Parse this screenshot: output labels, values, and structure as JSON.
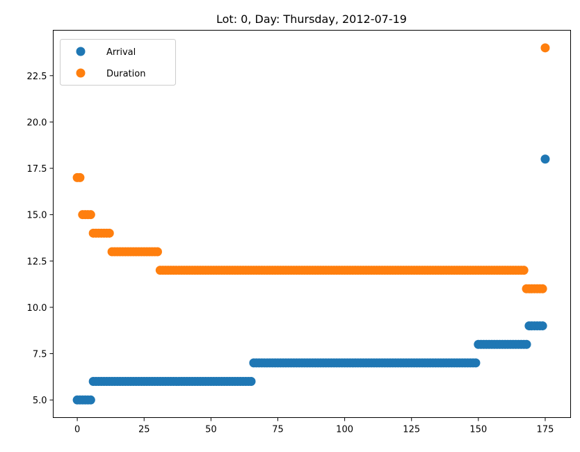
{
  "chart_data": {
    "type": "scatter",
    "title": "Lot: 0, Day: Thursday, 2012-07-19",
    "xlabel": "",
    "ylabel": "",
    "xlim": [
      -9,
      184.5
    ],
    "ylim": [
      4.05,
      24.95
    ],
    "xticks": [
      0,
      25,
      50,
      75,
      100,
      125,
      150,
      175
    ],
    "xtick_labels": [
      "0",
      "25",
      "50",
      "75",
      "100",
      "125",
      "150",
      "175"
    ],
    "yticks": [
      5.0,
      7.5,
      10.0,
      12.5,
      15.0,
      17.5,
      20.0,
      22.5
    ],
    "ytick_labels": [
      "5.0",
      "7.5",
      "10.0",
      "12.5",
      "15.0",
      "17.5",
      "20.0",
      "22.5"
    ],
    "grid": false,
    "legend_position": "top-left",
    "series": [
      {
        "name": "Arrival",
        "color": "#1f77b4",
        "segments": [
          {
            "x_start": 0,
            "x_end": 6,
            "y": 5
          },
          {
            "x_start": 6,
            "x_end": 66,
            "y": 6
          },
          {
            "x_start": 66,
            "x_end": 150,
            "y": 7
          },
          {
            "x_start": 150,
            "x_end": 169,
            "y": 8
          },
          {
            "x_start": 169,
            "x_end": 175,
            "y": 9
          },
          {
            "x_start": 175,
            "x_end": 176,
            "y": 18
          }
        ]
      },
      {
        "name": "Duration",
        "color": "#ff7f0e",
        "segments": [
          {
            "x_start": 0,
            "x_end": 2,
            "y": 17
          },
          {
            "x_start": 2,
            "x_end": 6,
            "y": 15
          },
          {
            "x_start": 6,
            "x_end": 13,
            "y": 14
          },
          {
            "x_start": 13,
            "x_end": 31,
            "y": 13
          },
          {
            "x_start": 31,
            "x_end": 168,
            "y": 12
          },
          {
            "x_start": 168,
            "x_end": 175,
            "y": 11
          },
          {
            "x_start": 175,
            "x_end": 176,
            "y": 24
          }
        ]
      }
    ]
  }
}
